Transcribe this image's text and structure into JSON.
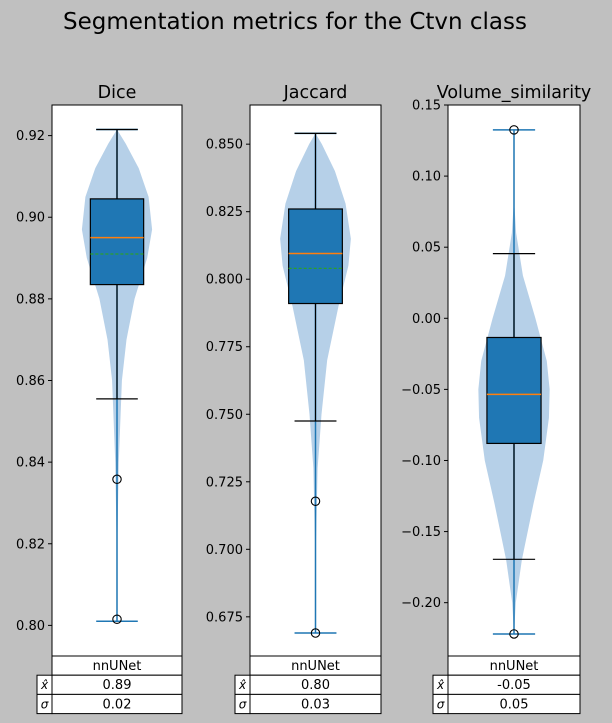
{
  "figure": {
    "title": "Segmentation metrics for the Ctvn class",
    "background": "#c0c0c0",
    "box_color": "#1f77b4",
    "violin_color": "#aecbe6",
    "median_color": "#ff7f0e",
    "mean_color": "#2ca02c"
  },
  "chart_data": [
    {
      "type": "box",
      "title": "Dice",
      "ylim": [
        0.7925,
        0.9275
      ],
      "ticks": [
        0.8,
        0.82,
        0.84,
        0.86,
        0.88,
        0.9,
        0.92
      ],
      "tick_labels": [
        "0.80",
        "0.82",
        "0.84",
        "0.86",
        "0.88",
        "0.90",
        "0.92"
      ],
      "box": {
        "min": 0.801,
        "q1": 0.8835,
        "median": 0.895,
        "mean": 0.891,
        "q3": 0.9045,
        "whisker_low": 0.8555,
        "whisker_high": 0.9215,
        "max": 0.9215
      },
      "outliers": [
        0.8358,
        0.8015
      ],
      "violin": [
        [
          0.801,
          0.0
        ],
        [
          0.82,
          0.01
        ],
        [
          0.84,
          0.05
        ],
        [
          0.86,
          0.14
        ],
        [
          0.87,
          0.27
        ],
        [
          0.88,
          0.5
        ],
        [
          0.89,
          0.86
        ],
        [
          0.897,
          1.0
        ],
        [
          0.905,
          0.9
        ],
        [
          0.912,
          0.62
        ],
        [
          0.918,
          0.25
        ],
        [
          0.9215,
          0.0
        ]
      ],
      "table": {
        "col_label": "nnUNet",
        "rows": [
          {
            "label": "x̂",
            "value": "0.89"
          },
          {
            "label": "σ",
            "value": "0.02"
          }
        ]
      }
    },
    {
      "type": "box",
      "title": "Jaccard",
      "ylim": [
        0.6605,
        0.8645
      ],
      "ticks": [
        0.675,
        0.7,
        0.725,
        0.75,
        0.775,
        0.8,
        0.825,
        0.85
      ],
      "tick_labels": [
        "0.675",
        "0.700",
        "0.725",
        "0.750",
        "0.775",
        "0.800",
        "0.825",
        "0.850"
      ],
      "box": {
        "min": 0.669,
        "q1": 0.791,
        "median": 0.8095,
        "mean": 0.804,
        "q3": 0.826,
        "whisker_low": 0.7475,
        "whisker_high": 0.854,
        "max": 0.854
      },
      "outliers": [
        0.7178,
        0.669
      ],
      "violin": [
        [
          0.669,
          0.0
        ],
        [
          0.7,
          0.01
        ],
        [
          0.73,
          0.06
        ],
        [
          0.75,
          0.17
        ],
        [
          0.77,
          0.33
        ],
        [
          0.79,
          0.65
        ],
        [
          0.805,
          0.93
        ],
        [
          0.815,
          1.0
        ],
        [
          0.828,
          0.85
        ],
        [
          0.84,
          0.55
        ],
        [
          0.85,
          0.18
        ],
        [
          0.854,
          0.0
        ]
      ],
      "table": {
        "col_label": "nnUNet",
        "rows": [
          {
            "label": "x̂",
            "value": "0.80"
          },
          {
            "label": "σ",
            "value": "0.03"
          }
        ]
      }
    },
    {
      "type": "box",
      "title": "Volume_similarity",
      "ylim": [
        -0.2375,
        0.15
      ],
      "ticks": [
        -0.2,
        -0.15,
        -0.1,
        -0.05,
        0.0,
        0.05,
        0.1,
        0.15
      ],
      "tick_labels": [
        "−0.20",
        "−0.15",
        "−0.10",
        "−0.05",
        "0.00",
        "0.05",
        "0.10",
        "0.15"
      ],
      "box": {
        "min": -0.222,
        "q1": -0.088,
        "median": -0.0535,
        "mean": -0.0535,
        "q3": -0.0135,
        "whisker_low": -0.1695,
        "whisker_high": 0.0455,
        "max": 0.1325
      },
      "outliers": [
        0.1325,
        -0.222
      ],
      "violin": [
        [
          -0.222,
          0.0
        ],
        [
          -0.2,
          0.05
        ],
        [
          -0.17,
          0.22
        ],
        [
          -0.13,
          0.55
        ],
        [
          -0.1,
          0.82
        ],
        [
          -0.07,
          0.98
        ],
        [
          -0.05,
          1.0
        ],
        [
          -0.03,
          0.92
        ],
        [
          0.0,
          0.6
        ],
        [
          0.03,
          0.25
        ],
        [
          0.06,
          0.06
        ],
        [
          0.08,
          0.01
        ],
        [
          0.1325,
          0.0
        ]
      ],
      "table": {
        "col_label": "nnUNet",
        "rows": [
          {
            "label": "x̂",
            "value": "-0.05"
          },
          {
            "label": "σ",
            "value": "0.05"
          }
        ]
      }
    }
  ]
}
